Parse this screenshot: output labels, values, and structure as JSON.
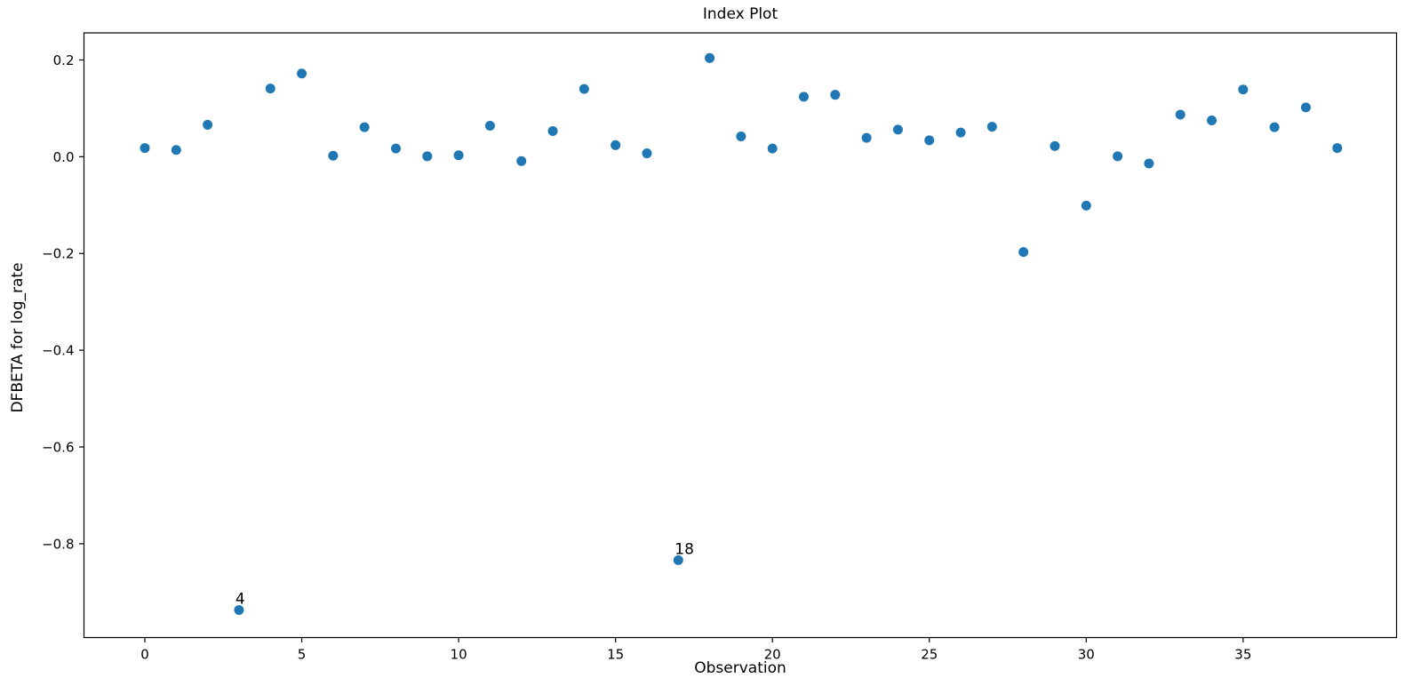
{
  "figure": {
    "background": "#ffffff",
    "text_color": "#000000",
    "spine_color": "#000000"
  },
  "chart_data": {
    "type": "scatter",
    "title": "Index Plot",
    "xlabel": "Observation",
    "ylabel": "DFBETA for log_rate",
    "grid": false,
    "legend": null,
    "marker_color": "#1f77b4",
    "xlim": [
      -1.94,
      39.89
    ],
    "ylim": [
      -0.994,
      0.256
    ],
    "xticks": {
      "values": [
        0,
        5,
        10,
        15,
        20,
        25,
        30,
        35
      ],
      "labels": [
        "0",
        "5",
        "10",
        "15",
        "20",
        "25",
        "30",
        "35"
      ]
    },
    "yticks": {
      "values": [
        0.2,
        0.0,
        -0.2,
        -0.4,
        -0.6,
        -0.8
      ],
      "labels": [
        "0.2",
        "0.0",
        "−0.2",
        "−0.4",
        "−0.6",
        "−0.8"
      ]
    },
    "x": [
      0,
      1,
      2,
      3,
      4,
      5,
      6,
      7,
      8,
      9,
      10,
      11,
      12,
      13,
      14,
      15,
      16,
      17,
      18,
      19,
      20,
      21,
      22,
      23,
      24,
      25,
      26,
      27,
      28,
      29,
      30,
      31,
      32,
      33,
      34,
      35,
      36,
      37,
      38
    ],
    "y": [
      0.018,
      0.014,
      0.066,
      -0.937,
      0.141,
      0.172,
      0.002,
      0.061,
      0.017,
      0.001,
      0.003,
      0.064,
      -0.009,
      0.053,
      0.14,
      0.024,
      0.007,
      -0.834,
      0.204,
      0.042,
      0.017,
      0.124,
      0.128,
      0.039,
      0.056,
      0.034,
      0.05,
      0.062,
      -0.197,
      0.022,
      -0.101,
      0.001,
      -0.014,
      0.087,
      0.075,
      0.139,
      0.061,
      0.102,
      0.018
    ],
    "annotations": [
      {
        "label": "4",
        "x": 3,
        "y": -0.937
      },
      {
        "label": "18",
        "x": 17,
        "y": -0.834
      }
    ]
  }
}
